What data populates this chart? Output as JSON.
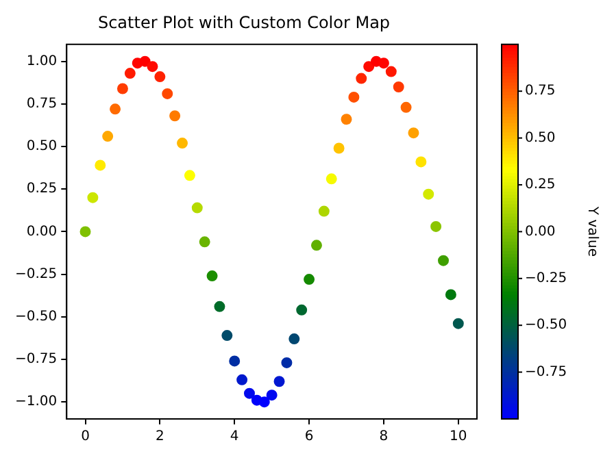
{
  "chart_data": {
    "type": "scatter",
    "title": "Scatter Plot with Custom Color Map",
    "clabel": "Y value",
    "x": [
      0,
      0.2,
      0.4,
      0.6,
      0.8,
      1.0,
      1.2,
      1.4,
      1.6,
      1.8,
      2.0,
      2.2,
      2.4,
      2.6,
      2.8,
      3.0,
      3.2,
      3.4,
      3.6,
      3.8,
      4.0,
      4.2,
      4.4,
      4.6,
      4.8,
      5.0,
      5.2,
      5.4,
      5.6,
      5.8,
      6.0,
      6.2,
      6.4,
      6.6,
      6.8,
      7.0,
      7.2,
      7.4,
      7.6,
      7.8,
      8.0,
      8.2,
      8.4,
      8.6,
      8.8,
      9.0,
      9.2,
      9.4,
      9.6,
      9.8,
      10.0
    ],
    "values": [
      0,
      0.2,
      0.39,
      0.56,
      0.72,
      0.84,
      0.93,
      0.99,
      1.0,
      0.97,
      0.91,
      0.81,
      0.68,
      0.52,
      0.33,
      0.14,
      -0.06,
      -0.26,
      -0.44,
      -0.61,
      -0.76,
      -0.87,
      -0.95,
      -0.99,
      -1.0,
      -0.96,
      -0.88,
      -0.77,
      -0.63,
      -0.46,
      -0.28,
      -0.08,
      0.12,
      0.31,
      0.49,
      0.66,
      0.79,
      0.9,
      0.97,
      1.0,
      0.99,
      0.94,
      0.85,
      0.73,
      0.58,
      0.41,
      0.22,
      0.03,
      -0.17,
      -0.37,
      -0.54
    ],
    "cvalues": [
      0,
      0.2,
      0.39,
      0.56,
      0.72,
      0.84,
      0.93,
      0.99,
      1.0,
      0.97,
      0.91,
      0.81,
      0.68,
      0.52,
      0.33,
      0.14,
      -0.06,
      -0.26,
      -0.44,
      -0.61,
      -0.76,
      -0.87,
      -0.95,
      -0.99,
      -1.0,
      -0.96,
      -0.88,
      -0.77,
      -0.63,
      -0.46,
      -0.28,
      -0.08,
      0.12,
      0.31,
      0.49,
      0.66,
      0.79,
      0.9,
      0.97,
      1.0,
      0.99,
      0.94,
      0.85,
      0.73,
      0.58,
      0.41,
      0.22,
      0.03,
      -0.17,
      -0.37,
      -0.54
    ],
    "clim": [
      -1,
      1
    ],
    "cticks": [
      {
        "value": -0.75,
        "label": "−0.75"
      },
      {
        "value": -0.5,
        "label": "−0.50"
      },
      {
        "value": -0.25,
        "label": "−0.25"
      },
      {
        "value": 0,
        "label": "0.00"
      },
      {
        "value": 0.25,
        "label": "0.25"
      },
      {
        "value": 0.5,
        "label": "0.50"
      },
      {
        "value": 0.75,
        "label": "0.75"
      }
    ],
    "xlim": [
      -0.5,
      10.5
    ],
    "xticks": [
      0,
      2,
      4,
      6,
      8,
      10
    ],
    "ylim": [
      -1.1,
      1.1
    ],
    "yticks": [
      {
        "value": -1,
        "label": "−1.00"
      },
      {
        "value": -0.75,
        "label": "−0.75"
      },
      {
        "value": -0.5,
        "label": "−0.50"
      },
      {
        "value": -0.25,
        "label": "−0.25"
      },
      {
        "value": 0,
        "label": "0.00"
      },
      {
        "value": 0.25,
        "label": "0.25"
      },
      {
        "value": 0.5,
        "label": "0.50"
      },
      {
        "value": 0.75,
        "label": "0.75"
      },
      {
        "value": 1,
        "label": "1.00"
      }
    ],
    "marker": "circle",
    "grid": false,
    "legend": false
  }
}
